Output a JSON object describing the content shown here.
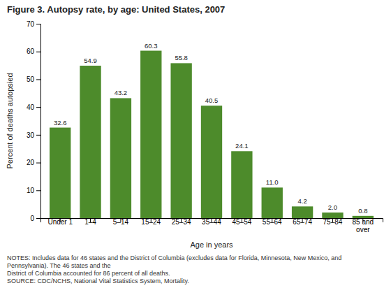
{
  "chart_data": {
    "type": "bar",
    "title": "Figure 3. Autopsy rate, by age: United States, 2007",
    "categories": [
      "Under 1",
      "1–4",
      "5–14",
      "15–24",
      "25–34",
      "35–44",
      "45–54",
      "55–64",
      "65–74",
      "75–84",
      "85 and\nover"
    ],
    "values": [
      32.6,
      54.9,
      43.2,
      60.3,
      55.8,
      40.5,
      24.1,
      11.0,
      4.2,
      2.0,
      0.8
    ],
    "value_labels": [
      "32.6",
      "54.9",
      "43.2",
      "60.3",
      "55.8",
      "40.5",
      "24.1",
      "11.0",
      "4.2",
      "2.0",
      "0.8"
    ],
    "data_labels": true,
    "color": "#4d8b2b",
    "xlabel": "Age in years",
    "ylabel": "Percent of deaths autopsied",
    "ylim": [
      0,
      70
    ],
    "yticks": [
      0,
      10,
      20,
      30,
      40,
      50,
      60,
      70
    ],
    "grid": false,
    "notes": [
      "NOTES: Includes data for 46 states and the District of Columbia (excludes data for Florida, Minnesota, New Mexico, and Pennsylvania). The 46 states and the",
      "District of Columbia accounted for 86 percent of all deaths."
    ],
    "source": "SOURCE: CDC/NCHS, National Vital Statistics System, Mortality."
  }
}
